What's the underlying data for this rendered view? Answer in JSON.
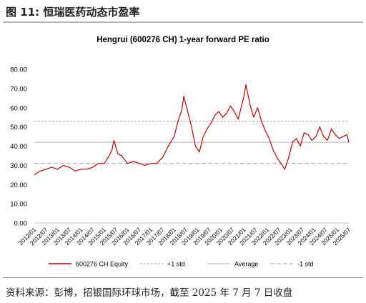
{
  "figure_title": "图 11: 恒瑞医药动态市盈率",
  "source_note": "资料来源：彭博，招银国际环球市场，截至 2025 年 7 月 7 日收盘",
  "colors": {
    "series": "#c00000",
    "avg": "#b0b0b0",
    "std": "#a6a6a6",
    "axis": "#bfbfbf",
    "text": "#000000"
  },
  "chart_data": {
    "type": "line",
    "title": "Hengrui (600276 CH) 1-year forward PE ratio",
    "ylim": [
      0,
      80
    ],
    "yticks": [
      "0.00",
      "10.00",
      "20.00",
      "30.00",
      "40.00",
      "50.00",
      "60.00",
      "70.00",
      "80.00"
    ],
    "xticks": [
      "2012/01",
      "2012/07",
      "2013/01",
      "2013/07",
      "2014/01",
      "2014/07",
      "2015/01",
      "2015/07",
      "2016/01",
      "2016/07",
      "2017/01",
      "2017/07",
      "2018/01",
      "2018/07",
      "2019/01",
      "2019/07",
      "2020/01",
      "2020/07",
      "2021/01",
      "2021/07",
      "2022/01",
      "2022/07",
      "2023/01",
      "2023/07",
      "2024/01",
      "2024/07",
      "2025/01",
      "2025/07"
    ],
    "legend_position": "bottom",
    "series": [
      {
        "name": "600276 CH Equity",
        "style": "solid",
        "x": [
          "2012/01",
          "2012/04",
          "2012/07",
          "2012/10",
          "2013/01",
          "2013/04",
          "2013/07",
          "2013/10",
          "2014/01",
          "2014/04",
          "2014/07",
          "2014/10",
          "2015/01",
          "2015/03",
          "2015/05",
          "2015/06",
          "2015/08",
          "2015/10",
          "2016/01",
          "2016/04",
          "2016/07",
          "2016/10",
          "2017/01",
          "2017/04",
          "2017/07",
          "2017/10",
          "2018/01",
          "2018/03",
          "2018/05",
          "2018/06",
          "2018/08",
          "2018/10",
          "2018/12",
          "2019/02",
          "2019/04",
          "2019/06",
          "2019/08",
          "2019/10",
          "2019/12",
          "2020/02",
          "2020/04",
          "2020/06",
          "2020/08",
          "2020/10",
          "2020/12",
          "2021/01",
          "2021/02",
          "2021/04",
          "2021/06",
          "2021/08",
          "2021/10",
          "2021/12",
          "2022/02",
          "2022/04",
          "2022/06",
          "2022/08",
          "2022/10",
          "2022/12",
          "2023/02",
          "2023/04",
          "2023/06",
          "2023/08",
          "2023/10",
          "2023/12",
          "2024/02",
          "2024/04",
          "2024/06",
          "2024/08",
          "2024/10",
          "2024/12",
          "2025/02",
          "2025/04",
          "2025/06",
          "2025/07"
        ],
        "values": [
          25,
          27,
          28,
          29,
          28,
          30,
          29,
          27,
          28,
          28,
          29,
          31,
          31,
          34,
          38,
          43,
          36,
          35,
          31,
          32,
          31,
          30,
          31,
          31,
          34,
          40,
          45,
          53,
          59,
          66,
          58,
          50,
          40,
          37,
          45,
          49,
          52,
          56,
          58,
          55,
          57,
          61,
          58,
          54,
          62,
          66,
          72,
          62,
          55,
          60,
          53,
          48,
          44,
          38,
          34,
          31,
          28,
          34,
          42,
          44,
          40,
          47,
          46,
          43,
          45,
          50,
          45,
          43,
          49,
          46,
          44,
          45,
          46,
          42
        ]
      },
      {
        "name": "+1 std",
        "style": "dashed",
        "constant": 53
      },
      {
        "name": "Average",
        "style": "solid",
        "constant": 42
      },
      {
        "name": "-1 std",
        "style": "longdash",
        "constant": 31
      }
    ]
  }
}
